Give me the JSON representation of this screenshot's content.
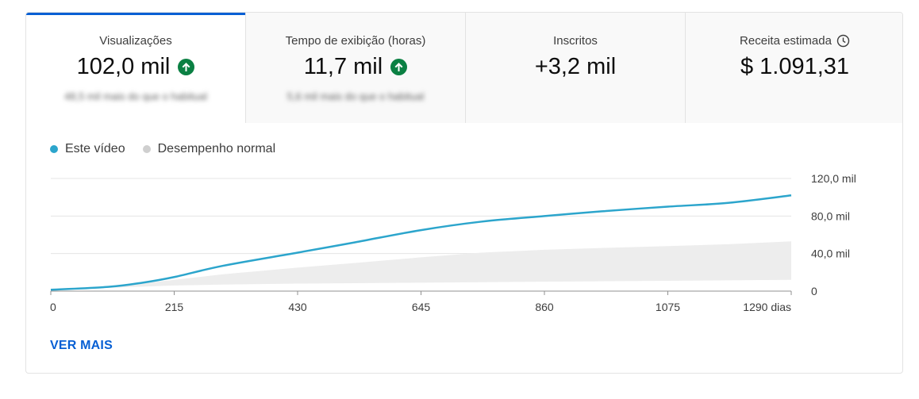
{
  "tabs": [
    {
      "label": "Visualizações",
      "value": "102,0 mil",
      "sub": "48,5 mil mais do que o habitual",
      "trend": "up"
    },
    {
      "label": "Tempo de exibição (horas)",
      "value": "11,7 mil",
      "sub": "5,6 mil mais do que o habitual",
      "trend": "up"
    },
    {
      "label": "Inscritos",
      "value": "+3,2 mil",
      "sub": "",
      "trend": ""
    },
    {
      "label": "Receita estimada",
      "value": "$ 1.091,31",
      "sub": "",
      "trend": ""
    }
  ],
  "legend": {
    "this_video": "Este vídeo",
    "typical": "Desempenho normal"
  },
  "colors": {
    "accent": "#065fd4",
    "this_video": "#2ca5cc",
    "typical": "#cfcfcf",
    "trend_up": "#0b8043"
  },
  "icons": {
    "trend": "arrow-up-circle-icon",
    "receita": "clock-icon"
  },
  "ver_mais": "VER MAIS",
  "chart_data": {
    "type": "line",
    "x_ticks": [
      "0",
      "215",
      "430",
      "645",
      "860",
      "1075",
      "1290 dias"
    ],
    "y_ticks": [
      "0",
      "40,0 mil",
      "80,0 mil",
      "120,0 mil"
    ],
    "xlim": [
      0,
      1290
    ],
    "ylim": [
      0,
      120000
    ],
    "grid": true,
    "legend_position": "top-left",
    "series": [
      {
        "name": "Este vídeo",
        "x": [
          0,
          100,
          160,
          215,
          300,
          430,
          530,
          645,
          750,
          860,
          960,
          1075,
          1180,
          1290
        ],
        "y": [
          1500,
          4500,
          9000,
          15000,
          27000,
          41000,
          52000,
          65000,
          74000,
          80000,
          85000,
          90000,
          94000,
          102000
        ]
      },
      {
        "name": "Desempenho normal",
        "type": "area-band",
        "x": [
          0,
          100,
          215,
          300,
          430,
          530,
          645,
          750,
          860,
          960,
          1075,
          1180,
          1290
        ],
        "lower": [
          1500,
          3500,
          6000,
          7000,
          8000,
          8500,
          9000,
          9500,
          10000,
          10500,
          11000,
          11500,
          12000
        ],
        "upper": [
          1500,
          4000,
          12000,
          18000,
          25000,
          30000,
          36000,
          41000,
          44000,
          46000,
          48000,
          50000,
          53000
        ]
      }
    ]
  }
}
